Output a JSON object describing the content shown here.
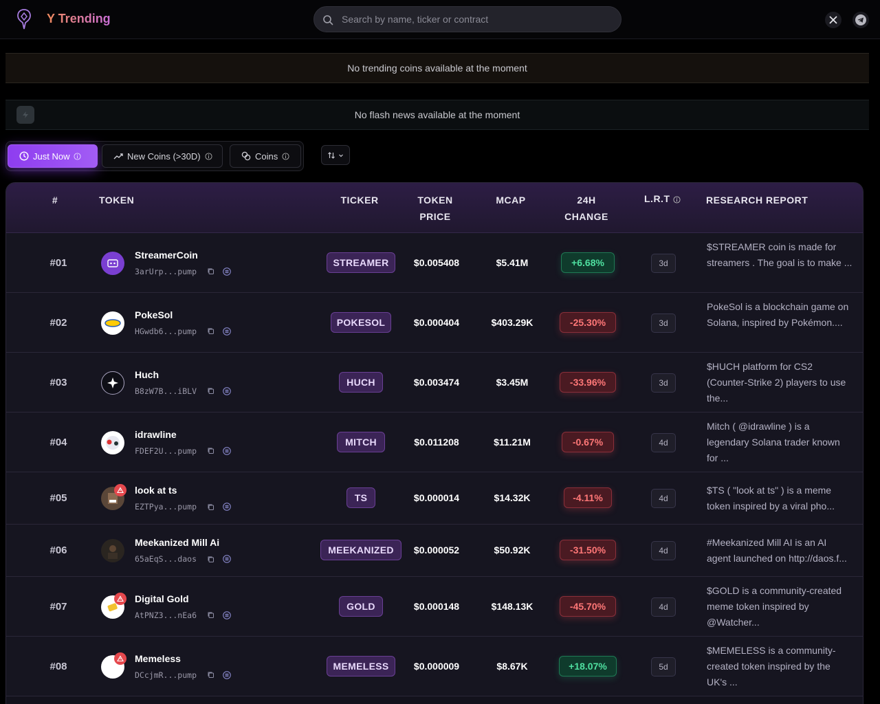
{
  "header": {
    "brand": "Y Trending",
    "search_placeholder": "Search by name, ticker or contract",
    "social": [
      "x-icon",
      "telegram-icon"
    ]
  },
  "banners": {
    "trending": "No trending coins available at the moment",
    "flash": "No flash news available at the moment"
  },
  "tabs": [
    {
      "label": "Just Now",
      "active": true
    },
    {
      "label": "New Coins (>30D)",
      "active": false
    },
    {
      "label": "Coins",
      "active": false
    }
  ],
  "table": {
    "headers": {
      "rank": "#",
      "token": "TOKEN",
      "ticker": "TICKER",
      "price_l1": "TOKEN",
      "price_l2": "PRICE",
      "mcap": "MCAP",
      "change_l1": "24H",
      "change_l2": "CHANGE",
      "lrt": "L.R.T",
      "report": "RESEARCH REPORT"
    },
    "rows": [
      {
        "rank": "#01",
        "name": "StreamerCoin",
        "address": "3arUrp...pump",
        "ticker": "STREAMER",
        "price": "$0.005408",
        "mcap": "$5.41M",
        "change": "+6.68%",
        "trend": "up",
        "lrt": "3d",
        "report": "$STREAMER coin is made for streamers . The goal is to make ...",
        "warning": false
      },
      {
        "rank": "#02",
        "name": "PokeSol",
        "address": "HGwdb6...pump",
        "ticker": "POKESOL",
        "price": "$0.000404",
        "mcap": "$403.29K",
        "change": "-25.30%",
        "trend": "down",
        "lrt": "3d",
        "report": "PokeSol is a blockchain game on Solana, inspired by Pokémon....",
        "warning": false
      },
      {
        "rank": "#03",
        "name": "Huch",
        "address": "B8zW7B...iBLV",
        "ticker": "HUCH",
        "price": "$0.003474",
        "mcap": "$3.45M",
        "change": "-33.96%",
        "trend": "down",
        "lrt": "3d",
        "report": "$HUCH platform for CS2 (Counter-Strike 2) players to use the...",
        "warning": false
      },
      {
        "rank": "#04",
        "name": "idrawline",
        "address": "FDEF2U...pump",
        "ticker": "MITCH",
        "price": "$0.011208",
        "mcap": "$11.21M",
        "change": "-0.67%",
        "trend": "down",
        "lrt": "4d",
        "report": "Mitch ( @idrawline ) is a legendary Solana trader known for ...",
        "warning": false
      },
      {
        "rank": "#05",
        "name": "look at ts",
        "address": "EZTPya...pump",
        "ticker": "TS",
        "price": "$0.000014",
        "mcap": "$14.32K",
        "change": "-4.11%",
        "trend": "down",
        "lrt": "4d",
        "report": "$TS ( \"look at ts\" ) is a meme token inspired by a viral pho...",
        "warning": true
      },
      {
        "rank": "#06",
        "name": "Meekanized Mill Ai",
        "address": "65aEqS...daos",
        "ticker": "MEEKANIZED",
        "price": "$0.000052",
        "mcap": "$50.92K",
        "change": "-31.50%",
        "trend": "down",
        "lrt": "4d",
        "report": "#Meekanized Mill AI is an AI agent launched on http://daos.f...",
        "warning": false
      },
      {
        "rank": "#07",
        "name": "Digital Gold",
        "address": "AtPNZ3...nEa6",
        "ticker": "GOLD",
        "price": "$0.000148",
        "mcap": "$148.13K",
        "change": "-45.70%",
        "trend": "down",
        "lrt": "4d",
        "report": "$GOLD is a community-created meme token inspired by @Watcher...",
        "warning": true
      },
      {
        "rank": "#08",
        "name": "Memeless",
        "address": "DCcjmR...pump",
        "ticker": "MEMELESS",
        "price": "$0.000009",
        "mcap": "$8.67K",
        "change": "+18.07%",
        "trend": "up",
        "lrt": "5d",
        "report": "$MEMELESS is a community-created token inspired by the UK's ...",
        "warning": true
      }
    ]
  }
}
